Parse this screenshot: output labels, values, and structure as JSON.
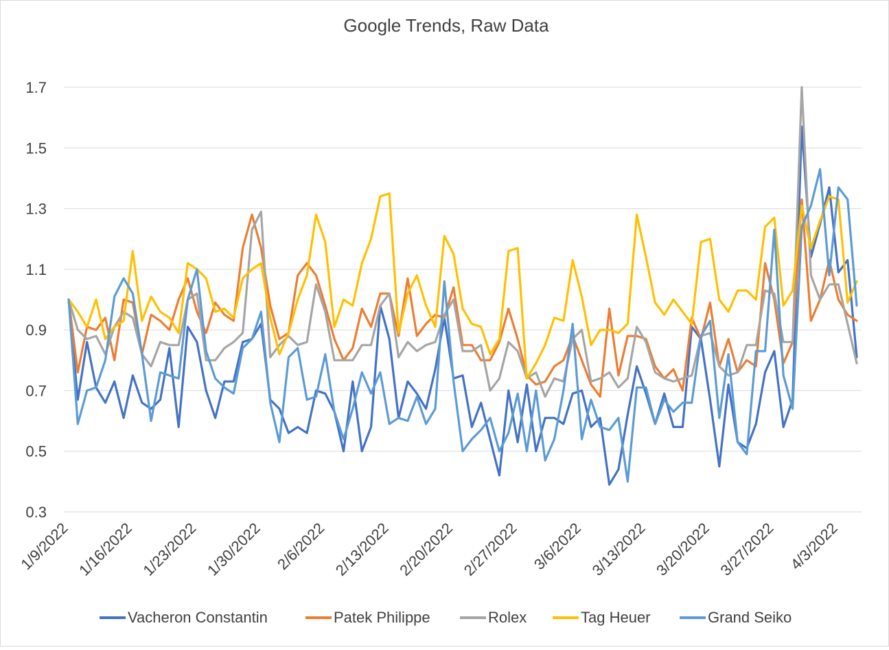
{
  "chart_data": {
    "type": "line",
    "title": "Google Trends, Raw Data",
    "xlabel": "",
    "ylabel": "",
    "ylim": [
      0.3,
      1.7
    ],
    "yticks": [
      0.3,
      0.5,
      0.7,
      0.9,
      1.1,
      1.3,
      1.5,
      1.7
    ],
    "ytick_labels": [
      "0.3",
      "0.5",
      "0.7",
      "0.9",
      "1.1",
      "1.3",
      "1.5",
      "1.7"
    ],
    "x_tick_every_days": 7,
    "x_tick_labels": [
      "1/9/2022",
      "1/16/2022",
      "1/23/2022",
      "1/30/2022",
      "2/6/2022",
      "2/13/2022",
      "2/20/2022",
      "2/27/2022",
      "3/6/2022",
      "3/13/2022",
      "3/20/2022",
      "3/27/2022",
      "4/3/2022"
    ],
    "grid": "horizontal",
    "legend": "bottom",
    "colors": [
      "#4472C4",
      "#ED7D31",
      "#A5A5A5",
      "#FFC000",
      "#5B9BD5"
    ],
    "series": [
      {
        "name": "Vacheron Constantin",
        "values": [
          1.0,
          0.67,
          0.86,
          0.71,
          0.66,
          0.73,
          0.61,
          0.75,
          0.66,
          0.64,
          0.67,
          0.84,
          0.58,
          0.91,
          0.86,
          0.7,
          0.61,
          0.73,
          0.73,
          0.86,
          0.87,
          0.92,
          0.67,
          0.64,
          0.56,
          0.58,
          0.56,
          0.7,
          0.69,
          0.63,
          0.5,
          0.73,
          0.5,
          0.58,
          0.98,
          0.87,
          0.61,
          0.73,
          0.69,
          0.64,
          0.77,
          0.94,
          0.74,
          0.75,
          0.58,
          0.66,
          0.54,
          0.42,
          0.7,
          0.53,
          0.72,
          0.5,
          0.61,
          0.61,
          0.59,
          0.69,
          0.7,
          0.58,
          0.61,
          0.39,
          0.44,
          0.62,
          0.78,
          0.69,
          0.59,
          0.69,
          0.58,
          0.58,
          0.91,
          0.87,
          0.67,
          0.45,
          0.72,
          0.53,
          0.51,
          0.59,
          0.76,
          0.83,
          0.58,
          0.67,
          1.57,
          1.14,
          1.25,
          1.37,
          1.09,
          1.13,
          0.81
        ]
      },
      {
        "name": "Patek Philippe",
        "values": [
          1.0,
          0.76,
          0.91,
          0.9,
          0.94,
          0.8,
          1.0,
          0.99,
          0.82,
          0.95,
          0.93,
          0.9,
          1.0,
          1.07,
          0.96,
          0.89,
          0.99,
          0.95,
          0.93,
          1.17,
          1.28,
          1.17,
          0.98,
          0.87,
          0.89,
          1.08,
          1.12,
          1.08,
          0.98,
          0.87,
          0.8,
          0.84,
          0.97,
          0.91,
          1.02,
          1.02,
          0.88,
          1.07,
          0.88,
          0.92,
          0.95,
          0.94,
          1.04,
          0.85,
          0.85,
          0.8,
          0.8,
          0.86,
          0.97,
          0.87,
          0.75,
          0.72,
          0.73,
          0.78,
          0.8,
          0.88,
          0.8,
          0.72,
          0.68,
          0.97,
          0.75,
          0.88,
          0.88,
          0.87,
          0.78,
          0.74,
          0.77,
          0.7,
          0.94,
          0.87,
          0.99,
          0.78,
          0.87,
          0.76,
          0.8,
          0.78,
          1.12,
          1.0,
          0.79,
          0.86,
          1.33,
          0.93,
          1.0,
          1.13,
          1.0,
          0.95,
          0.93
        ]
      },
      {
        "name": "Rolex",
        "values": [
          1.0,
          0.9,
          0.87,
          0.88,
          0.82,
          0.91,
          0.96,
          0.94,
          0.82,
          0.78,
          0.86,
          0.85,
          0.85,
          1.0,
          1.02,
          0.8,
          0.8,
          0.84,
          0.86,
          0.89,
          1.23,
          1.29,
          0.81,
          0.85,
          0.88,
          0.85,
          0.86,
          1.05,
          0.96,
          0.8,
          0.8,
          0.8,
          0.85,
          0.85,
          0.98,
          1.02,
          0.81,
          0.86,
          0.83,
          0.85,
          0.86,
          0.95,
          1.0,
          0.83,
          0.83,
          0.85,
          0.7,
          0.74,
          0.86,
          0.83,
          0.74,
          0.76,
          0.68,
          0.74,
          0.73,
          0.87,
          0.9,
          0.73,
          0.74,
          0.76,
          0.71,
          0.74,
          0.91,
          0.86,
          0.76,
          0.74,
          0.73,
          0.74,
          0.75,
          0.88,
          0.89,
          0.78,
          0.75,
          0.76,
          0.85,
          0.85,
          1.03,
          1.02,
          0.86,
          0.86,
          1.7,
          1.08,
          1.0,
          1.05,
          1.05,
          0.92,
          0.79
        ]
      },
      {
        "name": "Tag Heuer",
        "values": [
          1.0,
          0.96,
          0.91,
          1.0,
          0.87,
          0.91,
          0.93,
          1.16,
          0.93,
          1.01,
          0.96,
          0.94,
          0.89,
          1.12,
          1.1,
          1.07,
          0.96,
          0.97,
          0.94,
          1.07,
          1.1,
          1.12,
          0.94,
          0.82,
          0.89,
          1.0,
          1.08,
          1.28,
          1.19,
          0.91,
          1.0,
          0.98,
          1.12,
          1.2,
          1.34,
          1.35,
          0.89,
          1.02,
          1.08,
          0.98,
          0.91,
          1.21,
          1.15,
          0.97,
          0.92,
          0.91,
          0.82,
          0.87,
          1.16,
          1.17,
          0.74,
          0.79,
          0.85,
          0.94,
          0.93,
          1.13,
          1.01,
          0.85,
          0.9,
          0.9,
          0.89,
          0.92,
          1.28,
          1.14,
          0.99,
          0.95,
          1.0,
          0.96,
          0.92,
          1.19,
          1.2,
          1.0,
          0.96,
          1.03,
          1.03,
          1.0,
          1.24,
          1.27,
          0.98,
          1.03,
          1.31,
          1.17,
          1.26,
          1.34,
          1.33,
          0.99,
          1.06
        ]
      },
      {
        "name": "Grand Seiko",
        "values": [
          1.0,
          0.59,
          0.7,
          0.71,
          0.8,
          1.01,
          1.07,
          1.02,
          0.82,
          0.6,
          0.76,
          0.75,
          0.74,
          1.0,
          1.1,
          0.83,
          0.74,
          0.71,
          0.69,
          0.84,
          0.87,
          0.96,
          0.66,
          0.53,
          0.81,
          0.84,
          0.67,
          0.68,
          0.82,
          0.63,
          0.54,
          0.64,
          0.76,
          0.69,
          0.76,
          0.59,
          0.61,
          0.6,
          0.68,
          0.59,
          0.64,
          1.06,
          0.73,
          0.5,
          0.54,
          0.57,
          0.61,
          0.5,
          0.56,
          0.69,
          0.5,
          0.7,
          0.47,
          0.54,
          0.7,
          0.92,
          0.54,
          0.67,
          0.58,
          0.57,
          0.61,
          0.4,
          0.71,
          0.71,
          0.59,
          0.67,
          0.63,
          0.66,
          0.66,
          0.88,
          0.93,
          0.61,
          0.82,
          0.53,
          0.49,
          0.83,
          0.83,
          1.23,
          0.75,
          0.64,
          1.24,
          1.31,
          1.43,
          1.08,
          1.37,
          1.33,
          0.98
        ]
      }
    ]
  }
}
